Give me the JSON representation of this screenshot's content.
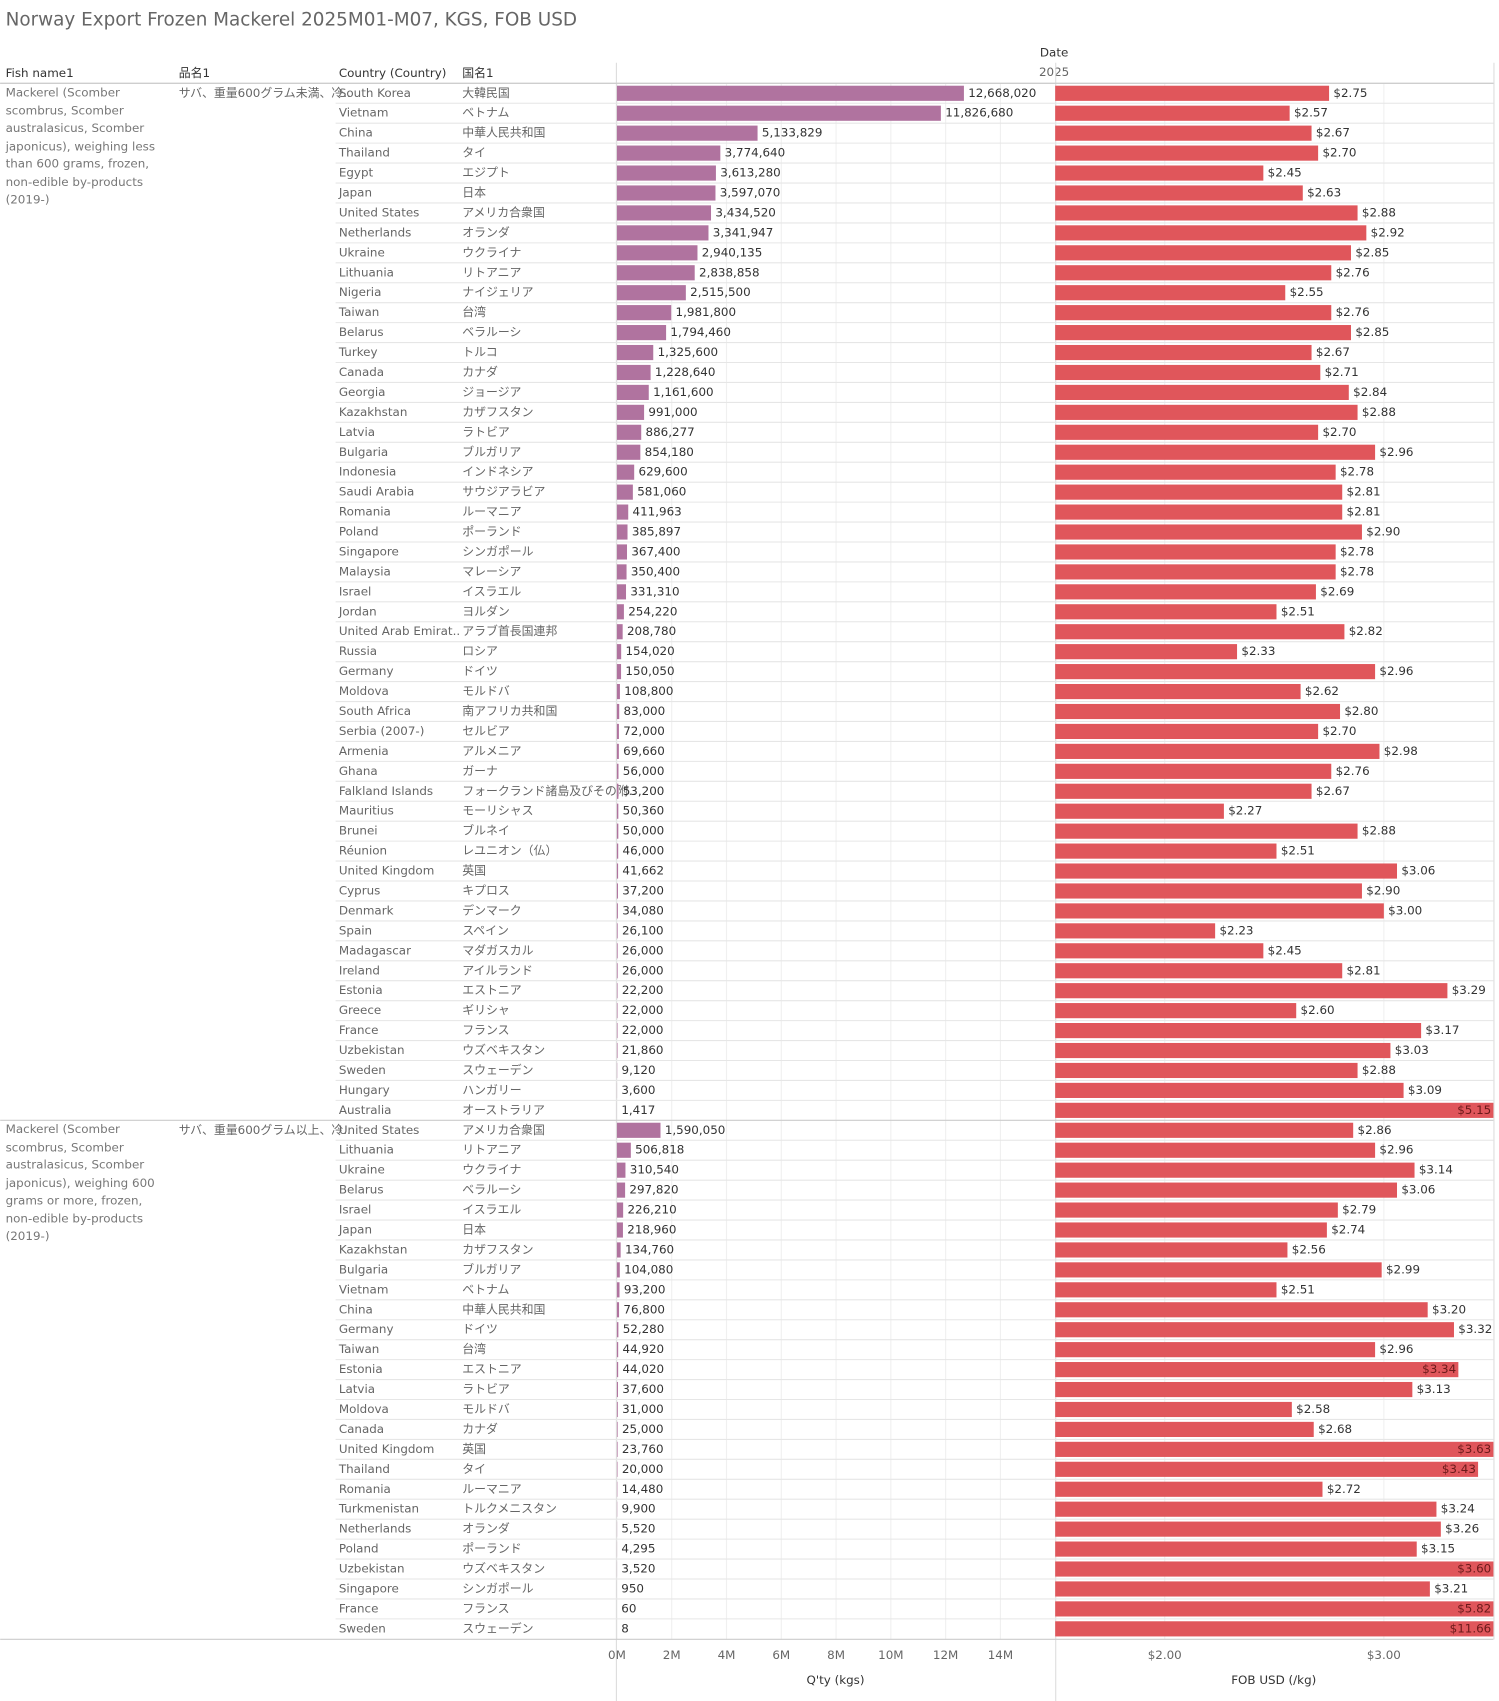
{
  "chart_data": {
    "type": "bar",
    "title": "Norway Export Frozen Mackerel 2025M01-M07, KGS, FOB USD",
    "column_header": "Date",
    "column_value": "2025",
    "headers": [
      "Fish name1",
      "品名1",
      "Country (Country)",
      "国名1"
    ],
    "grid": true,
    "qty_axis": {
      "title": "Q'ty (kgs)",
      "color": "#b0739f",
      "xlim": [
        0,
        16000000
      ],
      "xticks": [
        {
          "value": 0,
          "label": "0M"
        },
        {
          "value": 2000000,
          "label": "2M"
        },
        {
          "value": 4000000,
          "label": "4M"
        },
        {
          "value": 6000000,
          "label": "6M"
        },
        {
          "value": 8000000,
          "label": "8M"
        },
        {
          "value": 10000000,
          "label": "10M"
        },
        {
          "value": 12000000,
          "label": "12M"
        },
        {
          "value": 14000000,
          "label": "14M"
        }
      ]
    },
    "price_axis": {
      "title": "FOB USD (/kg)",
      "color": "#e0565b",
      "xlim": [
        1.5,
        3.5
      ],
      "xticks": [
        {
          "value": 2,
          "label": "$2.00"
        },
        {
          "value": 3,
          "label": "$3.00"
        }
      ]
    },
    "groups": [
      {
        "fish_name": "Mackerel (Scomber scombrus, Scomber australasicus, Scomber japonicus), weighing less than 600 grams, frozen, non-edible by-products (2019-)",
        "item_name": "サバ、重量600グラム未満、冷..",
        "countries": [
          "South Korea",
          "Vietnam",
          "China",
          "Thailand",
          "Egypt",
          "Japan",
          "United States",
          "Netherlands",
          "Ukraine",
          "Lithuania",
          "Nigeria",
          "Taiwan",
          "Belarus",
          "Turkey",
          "Canada",
          "Georgia",
          "Kazakhstan",
          "Latvia",
          "Bulgaria",
          "Indonesia",
          "Saudi Arabia",
          "Romania",
          "Poland",
          "Singapore",
          "Malaysia",
          "Israel",
          "Jordan",
          "United Arab Emirat..",
          "Russia",
          "Germany",
          "Moldova",
          "South Africa",
          "Serbia (2007-)",
          "Armenia",
          "Ghana",
          "Falkland Islands",
          "Mauritius",
          "Brunei",
          "Réunion",
          "United Kingdom",
          "Cyprus",
          "Denmark",
          "Spain",
          "Madagascar",
          "Ireland",
          "Estonia",
          "Greece",
          "France",
          "Uzbekistan",
          "Sweden",
          "Hungary",
          "Australia"
        ],
        "countries_jp": [
          "大韓民国",
          "ベトナム",
          "中華人民共和国",
          "タイ",
          "エジプト",
          "日本",
          "アメリカ合衆国",
          "オランダ",
          "ウクライナ",
          "リトアニア",
          "ナイジェリア",
          "台湾",
          "ベラルーシ",
          "トルコ",
          "カナダ",
          "ジョージア",
          "カザフスタン",
          "ラトビア",
          "ブルガリア",
          "インドネシア",
          "サウジアラビア",
          "ルーマニア",
          "ポーランド",
          "シンガポール",
          "マレーシア",
          "イスラエル",
          "ヨルダン",
          "アラブ首長国連邦",
          "ロシア",
          "ドイツ",
          "モルドバ",
          "南アフリカ共和国",
          "セルビア",
          "アルメニア",
          "ガーナ",
          "フォークランド諸島及びその附..",
          "モーリシャス",
          "ブルネイ",
          "レユニオン（仏）",
          "英国",
          "キプロス",
          "デンマーク",
          "スペイン",
          "マダガスカル",
          "アイルランド",
          "エストニア",
          "ギリシャ",
          "フランス",
          "ウズベキスタン",
          "スウェーデン",
          "ハンガリー",
          "オーストラリア"
        ],
        "qty": {
          "values": [
            12668020,
            11826680,
            5133829,
            3774640,
            3613280,
            3597070,
            3434520,
            3341947,
            2940135,
            2838858,
            2515500,
            1981800,
            1794460,
            1325600,
            1228640,
            1161600,
            991000,
            886277,
            854180,
            629600,
            581060,
            411963,
            385897,
            367400,
            350400,
            331310,
            254220,
            208780,
            154020,
            150050,
            108800,
            83000,
            72000,
            69660,
            56000,
            53200,
            50360,
            50000,
            46000,
            41662,
            37200,
            34080,
            26100,
            26000,
            26000,
            22200,
            22000,
            22000,
            21860,
            9120,
            3600,
            1417
          ],
          "value_labels": [
            "12,668,020",
            "11,826,680",
            "5,133,829",
            "3,774,640",
            "3,613,280",
            "3,597,070",
            "3,434,520",
            "3,341,947",
            "2,940,135",
            "2,838,858",
            "2,515,500",
            "1,981,800",
            "1,794,460",
            "1,325,600",
            "1,228,640",
            "1,161,600",
            "991,000",
            "886,277",
            "854,180",
            "629,600",
            "581,060",
            "411,963",
            "385,897",
            "367,400",
            "350,400",
            "331,310",
            "254,220",
            "208,780",
            "154,020",
            "150,050",
            "108,800",
            "83,000",
            "72,000",
            "69,660",
            "56,000",
            "53,200",
            "50,360",
            "50,000",
            "46,000",
            "41,662",
            "37,200",
            "34,080",
            "26,100",
            "26,000",
            "26,000",
            "22,200",
            "22,000",
            "22,000",
            "21,860",
            "9,120",
            "3,600",
            "1,417"
          ]
        },
        "price": {
          "values": [
            2.75,
            2.57,
            2.67,
            2.7,
            2.45,
            2.63,
            2.88,
            2.92,
            2.85,
            2.76,
            2.55,
            2.76,
            2.85,
            2.67,
            2.71,
            2.84,
            2.88,
            2.7,
            2.96,
            2.78,
            2.81,
            2.81,
            2.9,
            2.78,
            2.78,
            2.69,
            2.51,
            2.82,
            2.33,
            2.96,
            2.62,
            2.8,
            2.7,
            2.98,
            2.76,
            2.67,
            2.27,
            2.88,
            2.51,
            3.06,
            2.9,
            3.0,
            2.23,
            2.45,
            2.81,
            3.29,
            2.6,
            3.17,
            3.03,
            2.88,
            3.09,
            5.15
          ],
          "value_labels": [
            "$2.75",
            "$2.57",
            "$2.67",
            "$2.70",
            "$2.45",
            "$2.63",
            "$2.88",
            "$2.92",
            "$2.85",
            "$2.76",
            "$2.55",
            "$2.76",
            "$2.85",
            "$2.67",
            "$2.71",
            "$2.84",
            "$2.88",
            "$2.70",
            "$2.96",
            "$2.78",
            "$2.81",
            "$2.81",
            "$2.90",
            "$2.78",
            "$2.78",
            "$2.69",
            "$2.51",
            "$2.82",
            "$2.33",
            "$2.96",
            "$2.62",
            "$2.80",
            "$2.70",
            "$2.98",
            "$2.76",
            "$2.67",
            "$2.27",
            "$2.88",
            "$2.51",
            "$3.06",
            "$2.90",
            "$3.00",
            "$2.23",
            "$2.45",
            "$2.81",
            "$3.29",
            "$2.60",
            "$3.17",
            "$3.03",
            "$2.88",
            "$3.09",
            "$5.15"
          ]
        }
      },
      {
        "fish_name": "Mackerel (Scomber scombrus, Scomber australasicus, Scomber japonicus), weighing 600 grams or more, frozen, non-edible by-products (2019-)",
        "item_name": "サバ、重量600グラム以上、冷..",
        "countries": [
          "United States",
          "Lithuania",
          "Ukraine",
          "Belarus",
          "Israel",
          "Japan",
          "Kazakhstan",
          "Bulgaria",
          "Vietnam",
          "China",
          "Germany",
          "Taiwan",
          "Estonia",
          "Latvia",
          "Moldova",
          "Canada",
          "United Kingdom",
          "Thailand",
          "Romania",
          "Turkmenistan",
          "Netherlands",
          "Poland",
          "Uzbekistan",
          "Singapore",
          "France",
          "Sweden"
        ],
        "countries_jp": [
          "アメリカ合衆国",
          "リトアニア",
          "ウクライナ",
          "ベラルーシ",
          "イスラエル",
          "日本",
          "カザフスタン",
          "ブルガリア",
          "ベトナム",
          "中華人民共和国",
          "ドイツ",
          "台湾",
          "エストニア",
          "ラトビア",
          "モルドバ",
          "カナダ",
          "英国",
          "タイ",
          "ルーマニア",
          "トルクメニスタン",
          "オランダ",
          "ポーランド",
          "ウズベキスタン",
          "シンガポール",
          "フランス",
          "スウェーデン"
        ],
        "qty": {
          "values": [
            1590050,
            506818,
            310540,
            297820,
            226210,
            218960,
            134760,
            104080,
            93200,
            76800,
            52280,
            44920,
            44020,
            37600,
            31000,
            25000,
            23760,
            20000,
            14480,
            9900,
            5520,
            4295,
            3520,
            950,
            60,
            8
          ],
          "value_labels": [
            "1,590,050",
            "506,818",
            "310,540",
            "297,820",
            "226,210",
            "218,960",
            "134,760",
            "104,080",
            "93,200",
            "76,800",
            "52,280",
            "44,920",
            "44,020",
            "37,600",
            "31,000",
            "25,000",
            "23,760",
            "20,000",
            "14,480",
            "9,900",
            "5,520",
            "4,295",
            "3,520",
            "950",
            "60",
            "8"
          ]
        },
        "price": {
          "values": [
            2.86,
            2.96,
            3.14,
            3.06,
            2.79,
            2.74,
            2.56,
            2.99,
            2.51,
            3.2,
            3.32,
            2.96,
            3.34,
            3.13,
            2.58,
            2.68,
            3.63,
            3.43,
            2.72,
            3.24,
            3.26,
            3.15,
            3.6,
            3.21,
            5.82,
            11.66
          ],
          "value_labels": [
            "$2.86",
            "$2.96",
            "$3.14",
            "$3.06",
            "$2.79",
            "$2.74",
            "$2.56",
            "$2.99",
            "$2.51",
            "$3.20",
            "$3.32",
            "$2.96",
            "$3.34",
            "$3.13",
            "$2.58",
            "$2.68",
            "$3.63",
            "$3.43",
            "$2.72",
            "$3.24",
            "$3.26",
            "$3.15",
            "$3.60",
            "$3.21",
            "$5.82",
            "$11.66"
          ]
        }
      }
    ]
  }
}
